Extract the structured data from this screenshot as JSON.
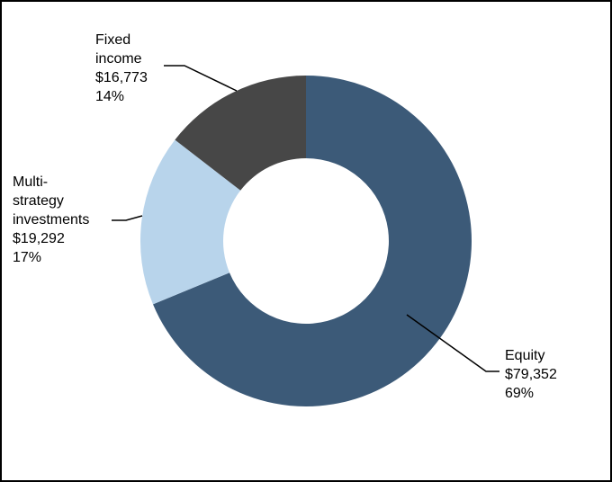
{
  "chart_data": {
    "type": "pie",
    "variant": "donut",
    "start": "12 o'clock, clockwise",
    "slices": [
      {
        "name_lines": [
          "Equity"
        ],
        "value_label": "$79,352",
        "percent_label": "69%",
        "value": 79352,
        "color": "#3c5a78"
      },
      {
        "name_lines": [
          "Multi-",
          "strategy",
          "investments"
        ],
        "value_label": "$19,292",
        "percent_label": "17%",
        "value": 19292,
        "color": "#b8d4eb"
      },
      {
        "name_lines": [
          "Fixed",
          "income"
        ],
        "value_label": "$16,773",
        "percent_label": "14%",
        "value": 16773,
        "color": "#474747"
      }
    ],
    "border_color": "#000000",
    "leader_line_color": "#000000"
  }
}
